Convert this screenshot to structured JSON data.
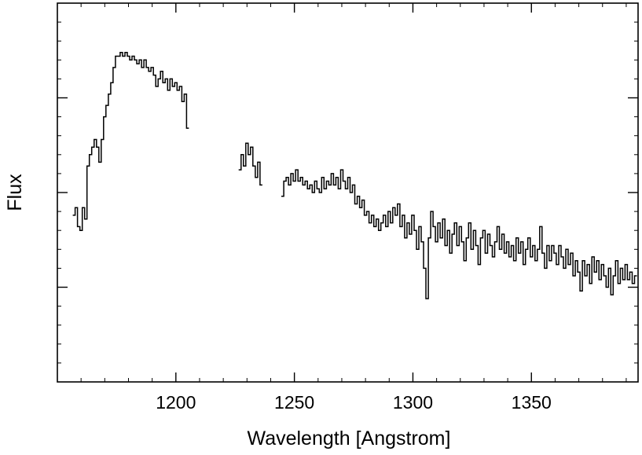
{
  "chart_data": {
    "type": "line",
    "xlabel": "Wavelength [Angstrom]",
    "ylabel": "Flux",
    "xlim": [
      1150,
      1395
    ],
    "ylim": [
      0,
      1.0
    ],
    "x_ticks": [
      1200,
      1250,
      1300,
      1350
    ],
    "x_tick_labels": [
      "1200",
      "1250",
      "1300",
      "1350"
    ],
    "y_ticks": [
      0.25,
      0.5,
      0.75
    ],
    "y_tick_labels": [],
    "grid": false,
    "style": "step",
    "series": [
      {
        "segments": [
          [
            [
              1157,
              0.44
            ],
            [
              1158,
              0.46
            ],
            [
              1159,
              0.41
            ],
            [
              1160,
              0.4
            ],
            [
              1161,
              0.46
            ],
            [
              1162,
              0.43
            ],
            [
              1163,
              0.57
            ],
            [
              1164,
              0.6
            ],
            [
              1165,
              0.62
            ],
            [
              1166,
              0.64
            ],
            [
              1167,
              0.62
            ],
            [
              1168,
              0.58
            ],
            [
              1169,
              0.64
            ],
            [
              1170,
              0.7
            ],
            [
              1171,
              0.73
            ],
            [
              1172,
              0.76
            ],
            [
              1173,
              0.79
            ],
            [
              1174,
              0.83
            ],
            [
              1175,
              0.86
            ],
            [
              1176,
              0.86
            ],
            [
              1177,
              0.87
            ],
            [
              1178,
              0.86
            ],
            [
              1179,
              0.87
            ],
            [
              1180,
              0.86
            ],
            [
              1181,
              0.85
            ],
            [
              1182,
              0.86
            ],
            [
              1183,
              0.85
            ],
            [
              1184,
              0.84
            ],
            [
              1185,
              0.85
            ],
            [
              1186,
              0.83
            ],
            [
              1187,
              0.85
            ],
            [
              1188,
              0.83
            ],
            [
              1189,
              0.82
            ],
            [
              1190,
              0.83
            ],
            [
              1191,
              0.81
            ],
            [
              1192,
              0.78
            ],
            [
              1193,
              0.8
            ],
            [
              1194,
              0.82
            ],
            [
              1195,
              0.79
            ],
            [
              1196,
              0.8
            ],
            [
              1197,
              0.77
            ],
            [
              1198,
              0.8
            ],
            [
              1199,
              0.78
            ],
            [
              1200,
              0.79
            ],
            [
              1201,
              0.77
            ],
            [
              1202,
              0.78
            ],
            [
              1203,
              0.74
            ],
            [
              1204,
              0.76
            ],
            [
              1205,
              0.67
            ]
          ],
          [
            [
              1227,
              0.56
            ],
            [
              1228,
              0.6
            ],
            [
              1229,
              0.57
            ],
            [
              1230,
              0.63
            ],
            [
              1231,
              0.6
            ],
            [
              1232,
              0.62
            ],
            [
              1233,
              0.57
            ],
            [
              1234,
              0.54
            ],
            [
              1235,
              0.58
            ],
            [
              1236,
              0.52
            ]
          ],
          [
            [
              1245,
              0.49
            ],
            [
              1246,
              0.53
            ],
            [
              1247,
              0.54
            ],
            [
              1248,
              0.52
            ],
            [
              1249,
              0.55
            ],
            [
              1250,
              0.53
            ],
            [
              1251,
              0.56
            ],
            [
              1252,
              0.53
            ],
            [
              1253,
              0.54
            ],
            [
              1254,
              0.52
            ],
            [
              1255,
              0.53
            ],
            [
              1256,
              0.51
            ],
            [
              1257,
              0.52
            ],
            [
              1258,
              0.5
            ],
            [
              1259,
              0.53
            ],
            [
              1260,
              0.51
            ],
            [
              1261,
              0.5
            ],
            [
              1262,
              0.54
            ],
            [
              1263,
              0.51
            ],
            [
              1264,
              0.53
            ],
            [
              1265,
              0.52
            ],
            [
              1266,
              0.55
            ],
            [
              1267,
              0.52
            ],
            [
              1268,
              0.54
            ],
            [
              1269,
              0.51
            ],
            [
              1270,
              0.56
            ],
            [
              1271,
              0.53
            ],
            [
              1272,
              0.51
            ],
            [
              1273,
              0.54
            ],
            [
              1274,
              0.5
            ],
            [
              1275,
              0.52
            ],
            [
              1276,
              0.47
            ],
            [
              1277,
              0.49
            ],
            [
              1278,
              0.46
            ],
            [
              1279,
              0.48
            ],
            [
              1280,
              0.44
            ],
            [
              1281,
              0.45
            ],
            [
              1282,
              0.42
            ],
            [
              1283,
              0.44
            ],
            [
              1284,
              0.41
            ],
            [
              1285,
              0.43
            ],
            [
              1286,
              0.4
            ],
            [
              1287,
              0.42
            ],
            [
              1288,
              0.44
            ],
            [
              1289,
              0.41
            ],
            [
              1290,
              0.45
            ],
            [
              1291,
              0.42
            ],
            [
              1292,
              0.46
            ],
            [
              1293,
              0.44
            ],
            [
              1294,
              0.47
            ],
            [
              1295,
              0.41
            ],
            [
              1296,
              0.44
            ],
            [
              1297,
              0.38
            ],
            [
              1298,
              0.42
            ],
            [
              1299,
              0.39
            ],
            [
              1300,
              0.44
            ],
            [
              1301,
              0.4
            ],
            [
              1302,
              0.35
            ],
            [
              1303,
              0.41
            ],
            [
              1304,
              0.37
            ],
            [
              1305,
              0.3
            ],
            [
              1306,
              0.22
            ],
            [
              1307,
              0.38
            ],
            [
              1308,
              0.45
            ],
            [
              1309,
              0.41
            ],
            [
              1310,
              0.37
            ],
            [
              1311,
              0.42
            ],
            [
              1312,
              0.38
            ],
            [
              1313,
              0.43
            ],
            [
              1314,
              0.36
            ],
            [
              1315,
              0.4
            ],
            [
              1316,
              0.34
            ],
            [
              1317,
              0.39
            ],
            [
              1318,
              0.42
            ],
            [
              1319,
              0.36
            ],
            [
              1320,
              0.41
            ],
            [
              1321,
              0.37
            ],
            [
              1322,
              0.32
            ],
            [
              1323,
              0.38
            ],
            [
              1324,
              0.42
            ],
            [
              1325,
              0.35
            ],
            [
              1326,
              0.4
            ],
            [
              1327,
              0.36
            ],
            [
              1328,
              0.31
            ],
            [
              1329,
              0.38
            ],
            [
              1330,
              0.4
            ],
            [
              1331,
              0.34
            ],
            [
              1332,
              0.39
            ],
            [
              1333,
              0.36
            ],
            [
              1334,
              0.33
            ],
            [
              1335,
              0.37
            ],
            [
              1336,
              0.41
            ],
            [
              1337,
              0.35
            ],
            [
              1338,
              0.39
            ],
            [
              1339,
              0.34
            ],
            [
              1340,
              0.37
            ],
            [
              1341,
              0.33
            ],
            [
              1342,
              0.36
            ],
            [
              1343,
              0.32
            ],
            [
              1344,
              0.38
            ],
            [
              1345,
              0.34
            ],
            [
              1346,
              0.37
            ],
            [
              1347,
              0.31
            ],
            [
              1348,
              0.35
            ],
            [
              1349,
              0.38
            ],
            [
              1350,
              0.33
            ],
            [
              1351,
              0.36
            ],
            [
              1352,
              0.32
            ],
            [
              1353,
              0.35
            ],
            [
              1354,
              0.41
            ],
            [
              1355,
              0.34
            ],
            [
              1356,
              0.3
            ],
            [
              1357,
              0.36
            ],
            [
              1358,
              0.32
            ],
            [
              1359,
              0.36
            ],
            [
              1360,
              0.34
            ],
            [
              1361,
              0.31
            ],
            [
              1362,
              0.36
            ],
            [
              1363,
              0.33
            ],
            [
              1364,
              0.3
            ],
            [
              1365,
              0.35
            ],
            [
              1366,
              0.31
            ],
            [
              1367,
              0.34
            ],
            [
              1368,
              0.28
            ],
            [
              1369,
              0.32
            ],
            [
              1370,
              0.29
            ],
            [
              1371,
              0.24
            ],
            [
              1372,
              0.32
            ],
            [
              1373,
              0.28
            ],
            [
              1374,
              0.31
            ],
            [
              1375,
              0.26
            ],
            [
              1376,
              0.33
            ],
            [
              1377,
              0.29
            ],
            [
              1378,
              0.32
            ],
            [
              1379,
              0.27
            ],
            [
              1380,
              0.31
            ],
            [
              1381,
              0.28
            ],
            [
              1382,
              0.25
            ],
            [
              1383,
              0.3
            ],
            [
              1384,
              0.23
            ],
            [
              1385,
              0.28
            ],
            [
              1386,
              0.32
            ],
            [
              1387,
              0.26
            ],
            [
              1388,
              0.3
            ],
            [
              1389,
              0.27
            ],
            [
              1390,
              0.31
            ],
            [
              1391,
              0.27
            ],
            [
              1392,
              0.29
            ],
            [
              1393,
              0.26
            ],
            [
              1394,
              0.28
            ]
          ]
        ]
      }
    ]
  }
}
